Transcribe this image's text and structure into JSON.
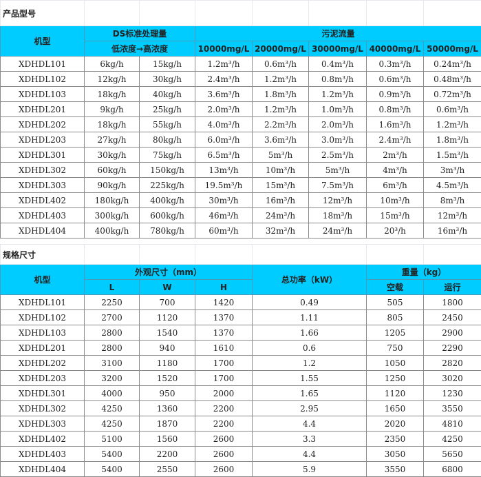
{
  "models_table": {
    "title": "产品型号",
    "model_header": "机型",
    "ds_header": "DS标准处理量",
    "ds_sub": "低浓度→高浓度",
    "flow_header": "污泥流量",
    "concentrations": [
      "10000mg/L",
      "20000mg/L",
      "30000mg/L",
      "40000mg/L",
      "50000mg/L"
    ],
    "rows": [
      [
        "XDHDL101",
        "6kg/h",
        "15kg/h",
        "1.2m³/h",
        "0.6m³/h",
        "0.4m³/h",
        "0.3m³/h",
        "0.24m³/h"
      ],
      [
        "XDHDL102",
        "12kg/h",
        "30kg/h",
        "2.4m³/h",
        "1.2m³/h",
        "0.8m³/h",
        "0.6m³/h",
        "0.48m³/h"
      ],
      [
        "XDHDL103",
        "18kg/h",
        "40kg/h",
        "3.6m³/h",
        "1.8m³/h",
        "1.2m³/h",
        "0.9m³/h",
        "0.72m³/h"
      ],
      [
        "XDHDL201",
        "9kg/h",
        "25kg/h",
        "2.0m³/h",
        "1.2m³/h",
        "1.0m³/h",
        "0.8m³/h",
        "0.6m³/h"
      ],
      [
        "XDHDL202",
        "18kg/h",
        "55kg/h",
        "4.0m³/h",
        "2.2m³/h",
        "2.0m³/h",
        "1.6m³/h",
        "1.2m³/h"
      ],
      [
        "XDHDL203",
        "27kg/h",
        "80kg/h",
        "6.0m³/h",
        "3.6m³/h",
        "3.0m³/h",
        "2.4m³/h",
        "1.8m³/h"
      ],
      [
        "XDHDL301",
        "30kg/h",
        "75kg/h",
        "6.5m³/h",
        "5m³/h",
        "2.5m³/h",
        "2m³/h",
        "1.5m³/h"
      ],
      [
        "XDHDL302",
        "60kg/h",
        "150kg/h",
        "13m³/h",
        "10m³/h",
        "5m³/h",
        "4m³/h",
        "3m³/h"
      ],
      [
        "XDHDL303",
        "90kg/h",
        "225kg/h",
        "19.5m³/h",
        "15m³/h",
        "7.5m³/h",
        "6m³/h",
        "4.5m³/h"
      ],
      [
        "XDHDL402",
        "180kg/h",
        "400kg/h",
        "30m³/h",
        "16m³/h",
        "12m³/h",
        "10m³/h",
        "8m³/h"
      ],
      [
        "XDHDL403",
        "300kg/h",
        "600kg/h",
        "46m³/h",
        "24m³/h",
        "18m³/h",
        "15m³/h",
        "12m³/h"
      ],
      [
        "XDHDL404",
        "400kg/h",
        "780kg/h",
        "60m³/h",
        "32m³/h",
        "24m³/h",
        "20³/h",
        "16m³/h"
      ]
    ]
  },
  "specs_table": {
    "title": "规格尺寸",
    "model_header": "机型",
    "dims_header": "外观尺寸（mm）",
    "dims": [
      "L",
      "W",
      "H"
    ],
    "power_header": "总功率（kW）",
    "weight_header": "重量（kg）",
    "weights": [
      "空载",
      "运行"
    ],
    "rows": [
      [
        "XDHDL101",
        "2250",
        "700",
        "1420",
        "0.49",
        "505",
        "1800"
      ],
      [
        "XDHDL102",
        "2700",
        "1120",
        "1370",
        "1.11",
        "805",
        "2450"
      ],
      [
        "XDHDL103",
        "2800",
        "1540",
        "1370",
        "1.66",
        "1205",
        "2900"
      ],
      [
        "XDHDL201",
        "2800",
        "940",
        "1610",
        "0.6",
        "750",
        "2290"
      ],
      [
        "XDHDL202",
        "3100",
        "1180",
        "1700",
        "1.2",
        "1050",
        "2820"
      ],
      [
        "XDHDL203",
        "3200",
        "1520",
        "1700",
        "1.55",
        "1250",
        "3020"
      ],
      [
        "XDHDL301",
        "4000",
        "950",
        "2000",
        "1.65",
        "1120",
        "1230"
      ],
      [
        "XDHDL302",
        "4250",
        "1360",
        "2200",
        "2.95",
        "1650",
        "3550"
      ],
      [
        "XDHDL303",
        "4250",
        "1870",
        "2200",
        "4.4",
        "2020",
        "4810"
      ],
      [
        "XDHDL402",
        "5100",
        "1560",
        "2600",
        "3.3",
        "2350",
        "4250"
      ],
      [
        "XDHDL403",
        "5400",
        "2200",
        "2600",
        "4.4",
        "3050",
        "5650"
      ],
      [
        "XDHDL404",
        "5400",
        "2550",
        "2600",
        "5.9",
        "3550",
        "6800"
      ]
    ]
  }
}
